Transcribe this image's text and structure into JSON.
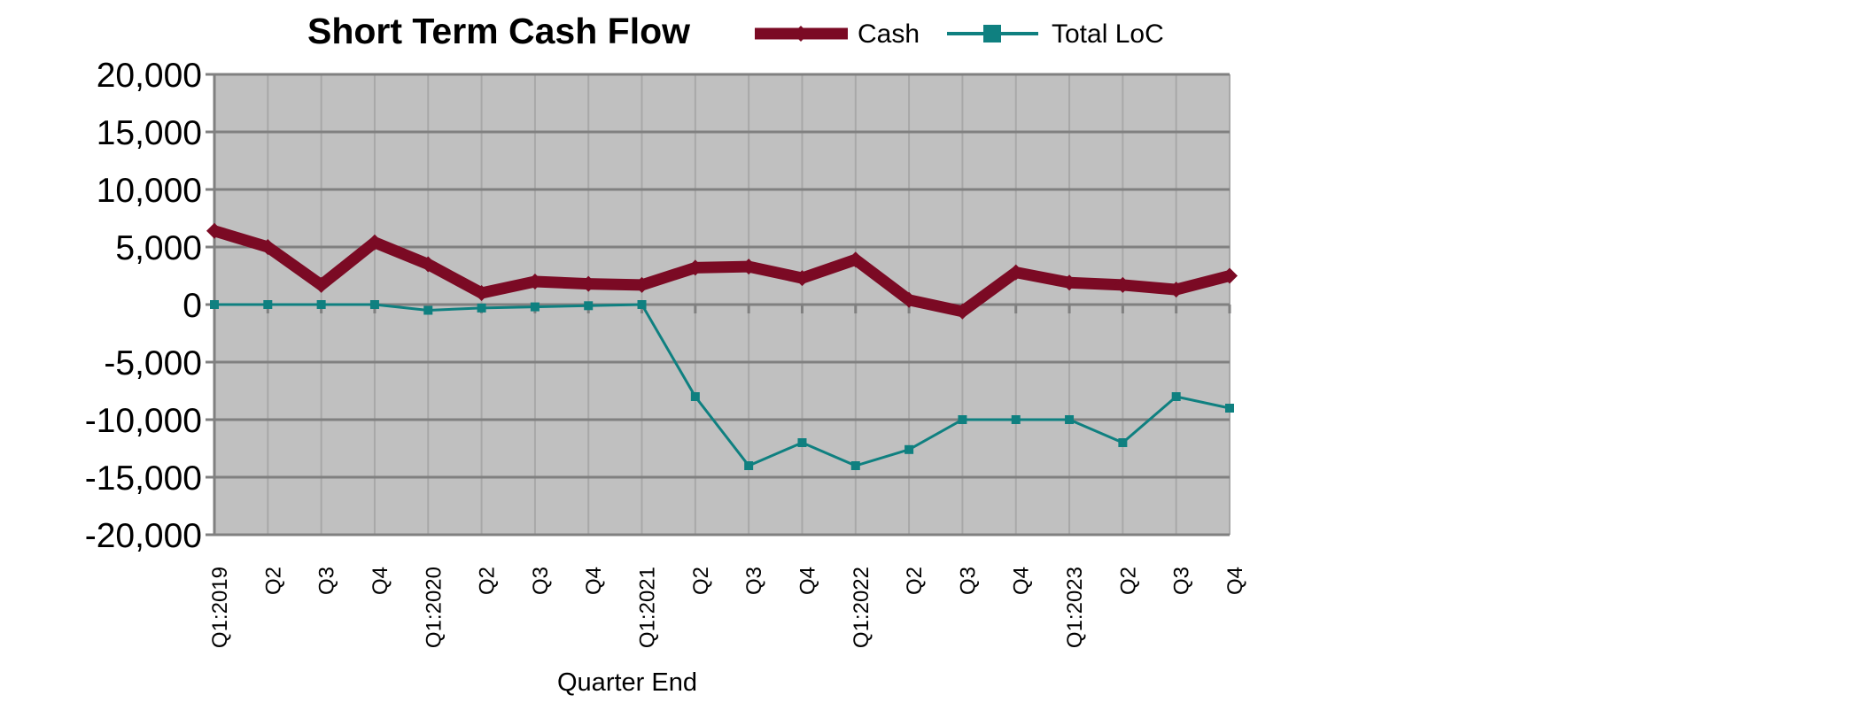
{
  "chart_data": {
    "type": "line",
    "title": "Short Term Cash Flow",
    "xlabel": "Quarter End",
    "ylabel": "",
    "ylim": [
      -20000,
      20000
    ],
    "yticks": [
      20000,
      15000,
      10000,
      5000,
      0,
      -5000,
      -10000,
      -15000,
      -20000
    ],
    "ytick_labels": [
      "20,000",
      "15,000",
      "10,000",
      "5,000",
      "0",
      "-5,000",
      "-10,000",
      "-15,000",
      "-20,000"
    ],
    "categories": [
      "Q1:2019",
      "Q2",
      "Q3",
      "Q4",
      "Q1:2020",
      "Q2",
      "Q3",
      "Q4",
      "Q1:2021",
      "Q2",
      "Q3",
      "Q4",
      "Q1:2022",
      "Q2",
      "Q3",
      "Q4",
      "Q1:2023",
      "Q2",
      "Q3",
      "Q4"
    ],
    "grid": true,
    "legend_position": "top",
    "plot_background": "#c0c0c0",
    "series": [
      {
        "name": "Cash",
        "color": "#7b0a24",
        "marker": "diamond",
        "values": [
          6400,
          5000,
          1700,
          5400,
          3500,
          1000,
          2000,
          1800,
          1700,
          3200,
          3300,
          2300,
          3900,
          400,
          -600,
          2800,
          1900,
          1700,
          1300,
          2500
        ]
      },
      {
        "name": "Total LoC",
        "color": "#0f8080",
        "marker": "square",
        "values": [
          0,
          0,
          0,
          0,
          -500,
          -300,
          -200,
          -100,
          0,
          -8000,
          -14000,
          -12000,
          -14000,
          -12600,
          -10000,
          -10000,
          -10000,
          -12000,
          -8000,
          -9000
        ]
      }
    ]
  }
}
